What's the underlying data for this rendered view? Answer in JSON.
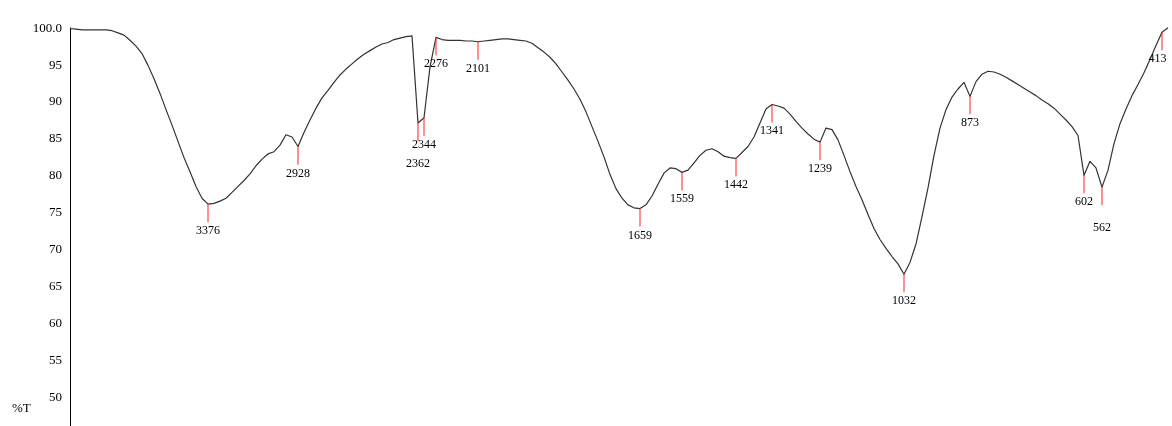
{
  "chart_data": {
    "type": "line",
    "ylabel": "%T",
    "ylim": [
      46,
      100
    ],
    "tick_labels": "y",
    "yticks": [
      {
        "value": 100,
        "label": "100.0"
      },
      95,
      90,
      85,
      80,
      75,
      70,
      65,
      60,
      55,
      50
    ],
    "categories": [
      null,
      null,
      null,
      null,
      null,
      null,
      null,
      null,
      null,
      null,
      null,
      null,
      null,
      null,
      null,
      null,
      null,
      null,
      null,
      null,
      null,
      null,
      null,
      null,
      null,
      null,
      null,
      null,
      null,
      null,
      null,
      null,
      null,
      null,
      null,
      null,
      null,
      null,
      null,
      null,
      null,
      null,
      null,
      null,
      null,
      null,
      null,
      null,
      null,
      null,
      null,
      null,
      null,
      null,
      null,
      null,
      null,
      null,
      null,
      null,
      null,
      null,
      null,
      null,
      null,
      null,
      null,
      null,
      null,
      null,
      null,
      null,
      null,
      null,
      null,
      null,
      null,
      null,
      null,
      null,
      null,
      null,
      null,
      null,
      null,
      null,
      null,
      null,
      null,
      null,
      null,
      null,
      null,
      null,
      null,
      null,
      null,
      null,
      null,
      null,
      null,
      null,
      null,
      null,
      null,
      null,
      null,
      null,
      null,
      null,
      null,
      null,
      null,
      null,
      null,
      null,
      null,
      null,
      null,
      null,
      null,
      null,
      null,
      null,
      null,
      null,
      null,
      null,
      null,
      null,
      null,
      null,
      null,
      null,
      null,
      null,
      null,
      null,
      null,
      null,
      null,
      null,
      null,
      null,
      null,
      null,
      null,
      null,
      null,
      null,
      null,
      null,
      null,
      null,
      null,
      null,
      null,
      null,
      null,
      null,
      null,
      null,
      null,
      null,
      null,
      null,
      null,
      null,
      null,
      null,
      null,
      null,
      null,
      null,
      null,
      null,
      null,
      null,
      null,
      null,
      null,
      null,
      null,
      null
    ],
    "series": [
      {
        "color": "#333333",
        "values": [
          99.8,
          99.7,
          99.6,
          99.6,
          99.6,
          99.6,
          99.6,
          99.5,
          99.2,
          98.9,
          98.2,
          97.4,
          96.4,
          94.8,
          93.0,
          91.0,
          88.8,
          86.7,
          84.5,
          82.3,
          80.4,
          78.4,
          76.8,
          76.0,
          76.1,
          76.4,
          76.8,
          77.6,
          78.4,
          79.2,
          80.1,
          81.2,
          82.1,
          82.8,
          83.1,
          84.0,
          85.4,
          85.1,
          83.8,
          85.7,
          87.4,
          89.0,
          90.4,
          91.4,
          92.5,
          93.5,
          94.3,
          95.0,
          95.7,
          96.3,
          96.8,
          97.3,
          97.7,
          97.9,
          98.3,
          98.5,
          98.7,
          98.8,
          87.0,
          87.7,
          94.6,
          98.6,
          98.3,
          98.2,
          98.2,
          98.2,
          98.1,
          98.1,
          98.0,
          98.1,
          98.2,
          98.3,
          98.4,
          98.4,
          98.3,
          98.2,
          98.1,
          97.8,
          97.2,
          96.6,
          95.9,
          95.0,
          93.9,
          92.8,
          91.6,
          90.2,
          88.5,
          86.5,
          84.5,
          82.4,
          80.0,
          78.1,
          76.8,
          75.9,
          75.5,
          75.4,
          75.9,
          77.1,
          78.7,
          80.2,
          80.9,
          80.8,
          80.3,
          80.6,
          81.6,
          82.6,
          83.3,
          83.5,
          83.1,
          82.5,
          82.3,
          82.2,
          83.0,
          83.8,
          85.1,
          87.0,
          88.9,
          89.5,
          89.3,
          89.0,
          88.2,
          87.2,
          86.3,
          85.5,
          84.8,
          84.4,
          86.3,
          86.1,
          84.7,
          82.6,
          80.4,
          78.4,
          76.6,
          74.6,
          72.7,
          71.2,
          70.0,
          68.9,
          67.9,
          66.5,
          68.1,
          70.6,
          74.3,
          78.2,
          82.6,
          86.3,
          88.8,
          90.5,
          91.6,
          92.5,
          90.6,
          92.6,
          93.6,
          94.0,
          93.9,
          93.6,
          93.2,
          92.7,
          92.2,
          91.7,
          91.2,
          90.7,
          90.1,
          89.6,
          89.0,
          88.2,
          87.4,
          86.5,
          85.3,
          79.9,
          81.8,
          80.9,
          78.3,
          80.6,
          84.2,
          86.9,
          88.9,
          90.7,
          92.2,
          93.8,
          95.6,
          97.5,
          99.3,
          99.9
        ]
      }
    ],
    "annotations": [
      {
        "text": "3376",
        "y": 76.0
      },
      {
        "text": "2928",
        "y": 83.8
      },
      {
        "text": "2344",
        "y": 87.7
      },
      {
        "text": "2362",
        "y": 87.0
      },
      {
        "text": "2276",
        "y": 98.6
      },
      {
        "text": "2101",
        "y": 98.0
      },
      {
        "text": "1659",
        "y": 75.4
      },
      {
        "text": "1559",
        "y": 80.3
      },
      {
        "text": "1442",
        "y": 82.2
      },
      {
        "text": "1341",
        "y": 89.5
      },
      {
        "text": "1239",
        "y": 84.4
      },
      {
        "text": "1032",
        "y": 66.5
      },
      {
        "text": "873",
        "y": 90.6
      },
      {
        "text": "602",
        "y": 79.9
      },
      {
        "text": "562",
        "y": 78.3
      },
      {
        "text": "413",
        "y": 99.3
      }
    ]
  }
}
